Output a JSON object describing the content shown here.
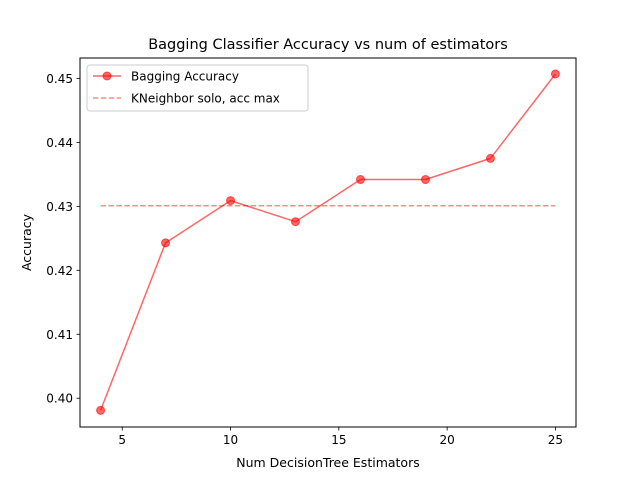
{
  "chart_data": {
    "type": "line",
    "title": "Bagging Classifier Accuracy vs num of estimators",
    "xlabel": "Num DecisionTree Estimators",
    "ylabel": "Accuracy",
    "xlim": [
      3.05,
      25.95
    ],
    "ylim": [
      0.3955,
      0.4532
    ],
    "xticks": [
      5,
      10,
      15,
      20,
      25
    ],
    "xtick_labels": [
      "5",
      "10",
      "15",
      "20",
      "25"
    ],
    "yticks": [
      0.4,
      0.41,
      0.42,
      0.43,
      0.44,
      0.45
    ],
    "ytick_labels": [
      "0.40",
      "0.41",
      "0.42",
      "0.43",
      "0.44",
      "0.45"
    ],
    "grid": false,
    "legend_position": "upper-left",
    "series": [
      {
        "name": "Bagging Accuracy",
        "style": "solid-with-markers",
        "color": "#ff0000",
        "x": [
          4,
          7,
          10,
          13,
          16,
          19,
          22,
          25
        ],
        "y": [
          0.3981,
          0.4243,
          0.4309,
          0.4276,
          0.4342,
          0.4342,
          0.4375,
          0.4507
        ]
      },
      {
        "name": "KNeighbor solo, acc max",
        "style": "dashed",
        "color": "#ff0000",
        "x": [
          4,
          25
        ],
        "y": [
          0.4301,
          0.4301
        ]
      }
    ]
  }
}
